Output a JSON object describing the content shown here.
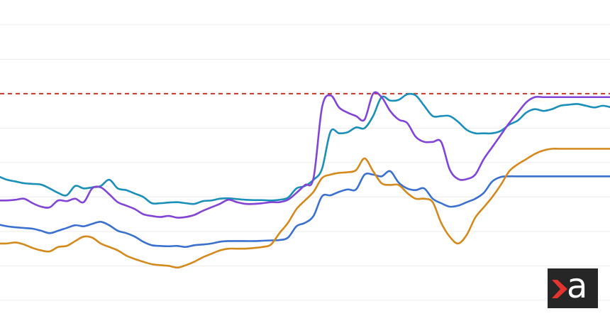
{
  "chart_data": {
    "type": "line",
    "title": "",
    "xlabel": "",
    "ylabel": "",
    "grid": true,
    "legend": "none",
    "x": [
      0,
      1,
      2,
      3,
      4,
      5,
      6,
      7,
      8,
      9,
      10,
      11,
      12,
      13,
      14,
      15,
      16,
      17,
      18,
      19,
      20,
      21,
      22,
      23,
      24,
      25,
      26,
      27,
      28,
      29,
      30,
      31,
      32,
      33,
      34,
      35,
      36,
      37,
      38,
      39,
      40,
      41,
      42,
      43,
      44,
      45,
      46,
      47,
      48,
      49,
      50,
      51,
      52,
      53,
      54,
      55,
      56,
      57,
      58,
      59,
      60,
      61,
      62,
      63,
      64,
      65,
      66,
      67,
      68,
      69,
      70,
      71,
      72
    ],
    "xlim": [
      0,
      72
    ],
    "ylim": [
      0,
      9
    ],
    "gridlines": [
      0.6,
      1.6,
      2.6,
      3.6,
      4.6,
      5.6,
      6.6,
      7.6,
      8.6
    ],
    "threshold": {
      "value": 6.6,
      "color": "#c0392b"
    },
    "series": [
      {
        "color": "#1a8fb8",
        "values": [
          4.2,
          4.1,
          4.05,
          4.0,
          3.98,
          3.96,
          3.85,
          3.72,
          3.65,
          3.92,
          3.85,
          3.88,
          3.92,
          4.1,
          3.85,
          3.8,
          3.7,
          3.6,
          3.42,
          3.42,
          3.44,
          3.45,
          3.42,
          3.4,
          3.48,
          3.5,
          3.55,
          3.56,
          3.54,
          3.52,
          3.51,
          3.51,
          3.5,
          3.52,
          3.58,
          3.85,
          3.92,
          4.1,
          4.42,
          5.5,
          5.45,
          5.48,
          5.62,
          5.6,
          5.95,
          6.5,
          6.4,
          6.42,
          6.58,
          6.55,
          6.25,
          5.95,
          5.95,
          5.95,
          5.78,
          5.55,
          5.45,
          5.45,
          5.45,
          5.52,
          5.7,
          5.82,
          6.05,
          6.15,
          6.1,
          6.15,
          6.25,
          6.28,
          6.3,
          6.25,
          6.2,
          6.25,
          6.2
        ]
      },
      {
        "color": "#8244d6",
        "values": [
          3.5,
          3.5,
          3.52,
          3.55,
          3.42,
          3.32,
          3.3,
          3.5,
          3.48,
          3.55,
          3.45,
          3.85,
          3.88,
          3.68,
          3.45,
          3.35,
          3.25,
          3.1,
          3.05,
          3.02,
          3.05,
          3.0,
          3.02,
          3.08,
          3.2,
          3.3,
          3.4,
          3.52,
          3.45,
          3.4,
          3.4,
          3.42,
          3.45,
          3.45,
          3.52,
          3.72,
          3.95,
          4.15,
          6.2,
          6.55,
          6.2,
          6.05,
          5.95,
          5.85,
          6.6,
          6.5,
          6.1,
          5.85,
          5.75,
          5.35,
          5.2,
          5.2,
          5.2,
          4.4,
          4.12,
          4.12,
          4.25,
          4.7,
          5.05,
          5.4,
          5.75,
          6.05,
          6.35,
          6.5,
          6.5,
          6.5,
          6.5,
          6.5,
          6.5,
          6.5,
          6.5,
          6.5,
          6.5
        ]
      },
      {
        "color": "#3a70cf",
        "values": [
          2.8,
          2.75,
          2.72,
          2.7,
          2.68,
          2.62,
          2.55,
          2.62,
          2.7,
          2.78,
          2.75,
          2.82,
          2.88,
          2.78,
          2.62,
          2.55,
          2.45,
          2.3,
          2.2,
          2.18,
          2.17,
          2.18,
          2.15,
          2.2,
          2.22,
          2.25,
          2.3,
          2.32,
          2.32,
          2.32,
          2.32,
          2.33,
          2.34,
          2.35,
          2.42,
          2.75,
          2.85,
          3.05,
          3.62,
          3.65,
          3.75,
          3.82,
          3.82,
          4.25,
          4.25,
          4.2,
          4.35,
          4.02,
          3.85,
          3.8,
          3.85,
          3.55,
          3.42,
          3.32,
          3.35,
          3.45,
          3.55,
          3.72,
          4.05,
          4.18,
          4.2,
          4.2,
          4.2,
          4.2,
          4.2,
          4.2,
          4.2,
          4.2,
          4.2,
          4.2,
          4.2,
          4.2,
          4.2
        ]
      },
      {
        "color": "#d4891c",
        "values": [
          2.25,
          2.25,
          2.28,
          2.22,
          2.12,
          2.05,
          2.02,
          2.15,
          2.18,
          2.32,
          2.45,
          2.42,
          2.25,
          2.15,
          2.05,
          1.9,
          1.8,
          1.72,
          1.65,
          1.62,
          1.6,
          1.55,
          1.62,
          1.72,
          1.85,
          1.95,
          2.05,
          2.1,
          2.1,
          2.1,
          2.12,
          2.15,
          2.22,
          2.55,
          2.85,
          3.25,
          3.5,
          3.75,
          4.15,
          4.25,
          4.3,
          4.32,
          4.38,
          4.72,
          4.35,
          4.0,
          3.95,
          3.95,
          3.72,
          3.55,
          3.55,
          3.45,
          2.85,
          2.45,
          2.25,
          2.5,
          3.0,
          3.3,
          3.6,
          3.95,
          4.35,
          4.55,
          4.7,
          4.85,
          4.95,
          5.0,
          5.0,
          5.0,
          5.0,
          5.0,
          5.0,
          5.0,
          5.0
        ]
      }
    ]
  },
  "logo": {
    "letter": "a",
    "background": "#262626",
    "chevron_color": "#e3342f",
    "letter_color": "#ffffff"
  }
}
